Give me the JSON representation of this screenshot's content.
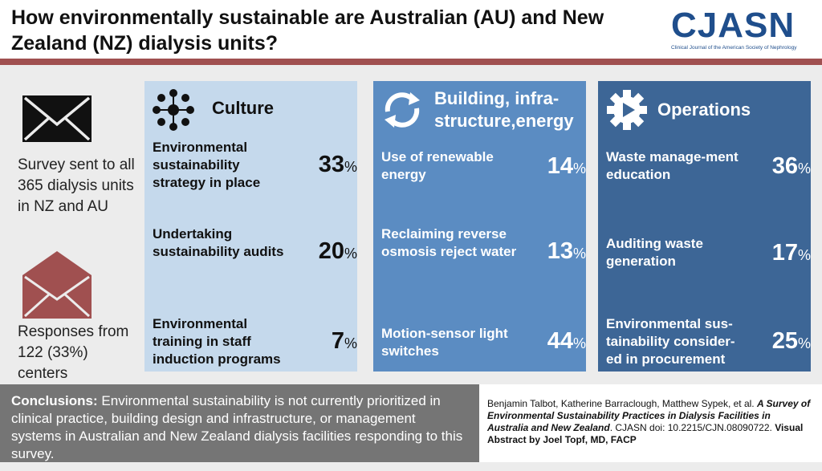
{
  "header": {
    "title": "How environmentally sustainable are Australian (AU) and New Zealand (NZ) dialysis units?",
    "logo_main": "CJASN",
    "logo_sub": "Clinical Journal of the American Society of Nephrology"
  },
  "left": {
    "survey_icon": "closed-envelope-icon",
    "survey_text": "Survey sent to all 365 dialysis units in NZ and AU",
    "responses_icon": "open-envelope-icon",
    "responses_text": "Responses from 122 (33%) centers"
  },
  "culture": {
    "icon": "people-network-icon",
    "title": "Culture",
    "items": [
      {
        "label": "Environmental sustainability strategy in place",
        "value": "33",
        "unit": "%"
      },
      {
        "label": "Undertaking sustainability audits",
        "value": "20",
        "unit": "%"
      },
      {
        "label": "Environmental training in staff induction programs",
        "value": "7",
        "unit": "%"
      }
    ]
  },
  "building": {
    "icon": "recycle-arrows-icon",
    "title": "Building, infra-structure,energy",
    "items": [
      {
        "label": "Use of renewable energy",
        "value": "14",
        "unit": "%"
      },
      {
        "label": "Reclaiming reverse osmosis reject water",
        "value": "13",
        "unit": "%"
      },
      {
        "label": "Motion-sensor light switches",
        "value": "44",
        "unit": "%"
      }
    ]
  },
  "operations": {
    "icon": "gear-icon",
    "title": "Operations",
    "items": [
      {
        "label": "Waste manage-ment education",
        "value": "36",
        "unit": "%"
      },
      {
        "label": "Auditing waste generation",
        "value": "17",
        "unit": "%"
      },
      {
        "label": "Environmental sus-tainability consider-ed in procurement",
        "value": "25",
        "unit": "%"
      }
    ]
  },
  "footer": {
    "conclusions_label": "Conclusions:",
    "conclusions_text": "Environmental sustainability is not currently prioritized in clinical practice, building design and infrastructure, or management systems in Australian and New Zealand dialysis facilities responding to this survey.",
    "authors": "Benjamin Talbot, Katherine Barraclough, Matthew Sypek, et al.",
    "article_title": "A Survey of Environmental Sustainability Practices in Dialysis Facilities in Australia and New Zealand",
    "doi": ". CJASN doi: 10.2215/CJN.08090722.",
    "credit": "Visual Abstract by Joel Topf, MD, FACP"
  }
}
